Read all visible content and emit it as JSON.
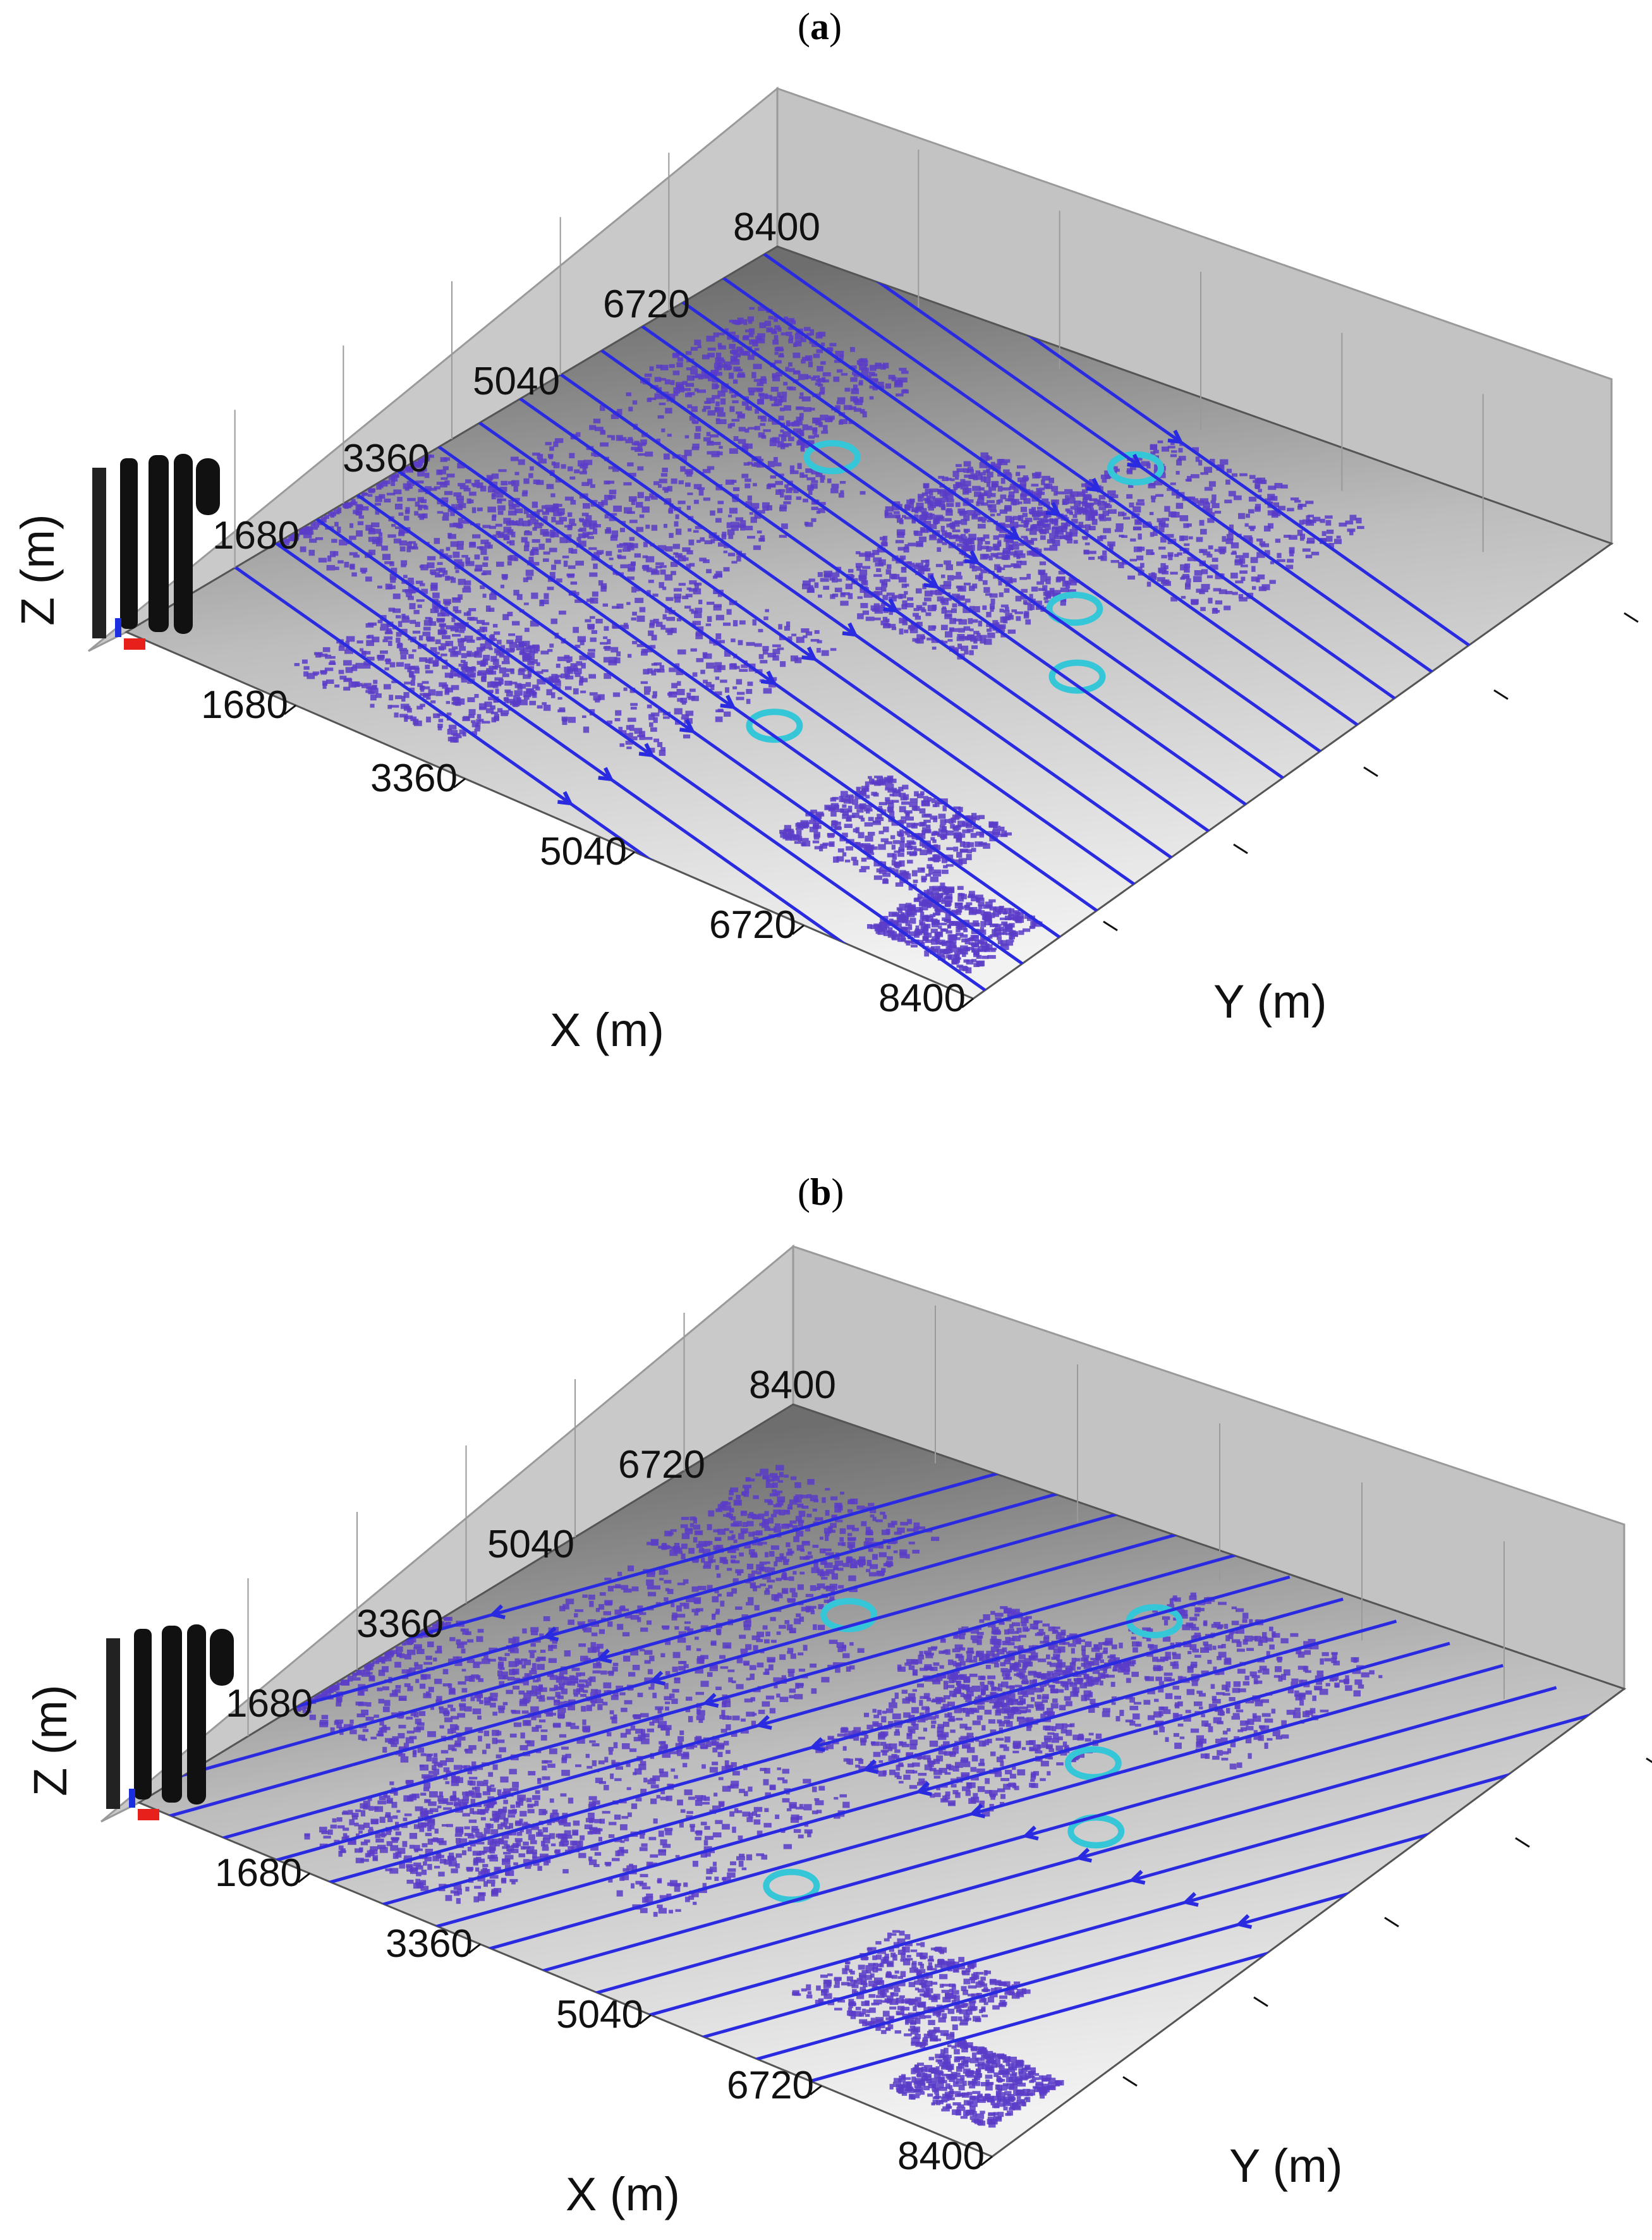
{
  "chart_data": [
    {
      "type": "other",
      "panel_label": "a",
      "xlabel": "X (m)",
      "ylabel": "Y (m)",
      "zlabel": "Z (m)",
      "x_ticks": [
        "1680",
        "3360",
        "5040",
        "6720",
        "8400"
      ],
      "y_ticks": [
        "1680",
        "3360",
        "5040",
        "6720",
        "8400"
      ],
      "xlim": [
        0,
        8400
      ],
      "ylim": [
        0,
        8400
      ],
      "streamline_direction": "toward +X",
      "colors": {
        "streamline": "#2a2ae0",
        "building": "#5a3cc8",
        "accent": "#35c6d8",
        "wall": "#c8c8c8"
      }
    },
    {
      "type": "other",
      "panel_label": "b",
      "xlabel": "X (m)",
      "ylabel": "Y (m)",
      "zlabel": "Z (m)",
      "x_ticks": [
        "1680",
        "3360",
        "5040",
        "6720",
        "8400"
      ],
      "y_ticks": [
        "1680",
        "3360",
        "5040",
        "6720",
        "8400"
      ],
      "xlim": [
        0,
        8400
      ],
      "ylim": [
        0,
        8400
      ],
      "streamline_direction": "toward -Y",
      "colors": {
        "streamline": "#2a2ae0",
        "building": "#5a3cc8",
        "accent": "#35c6d8",
        "wall": "#c8c8c8"
      }
    }
  ]
}
